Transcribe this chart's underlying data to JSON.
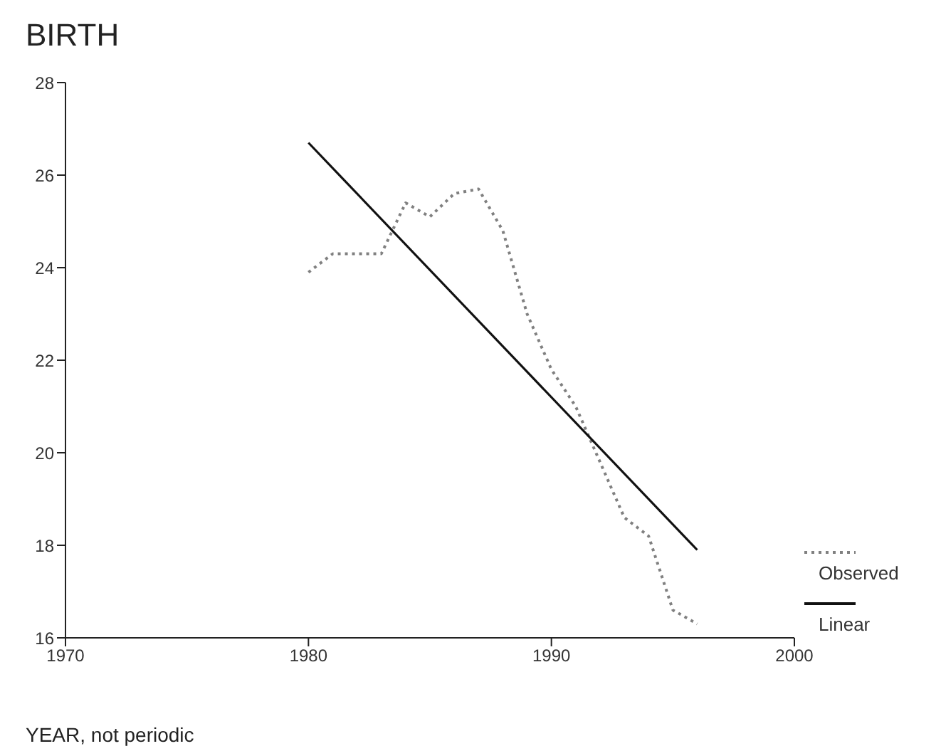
{
  "chart_data": {
    "type": "line",
    "title": "BIRTH",
    "xlabel": "YEAR, not periodic",
    "x": [
      1980,
      1981,
      1982,
      1983,
      1984,
      1985,
      1986,
      1987,
      1988,
      1989,
      1990,
      1991,
      1992,
      1993,
      1994,
      1995,
      1996
    ],
    "series": [
      {
        "name": "Observed",
        "color": "#808080",
        "line_style": "dotted",
        "values": [
          23.9,
          24.3,
          24.3,
          24.3,
          25.4,
          25.1,
          25.6,
          25.7,
          24.8,
          23.0,
          21.8,
          21.0,
          19.8,
          18.6,
          18.2,
          16.6,
          16.3
        ]
      },
      {
        "name": "Linear",
        "color": "#111111",
        "line_style": "solid",
        "x": [
          1980,
          1996
        ],
        "values": [
          26.7,
          17.9
        ]
      }
    ],
    "xlim": [
      1970,
      2000
    ],
    "xticks": [
      1970,
      1980,
      1990,
      2000
    ],
    "ylim": [
      16,
      28
    ],
    "yticks": [
      16,
      18,
      20,
      22,
      24,
      26,
      28
    ],
    "grid": false,
    "legend": "bottom right",
    "marker": "none"
  }
}
